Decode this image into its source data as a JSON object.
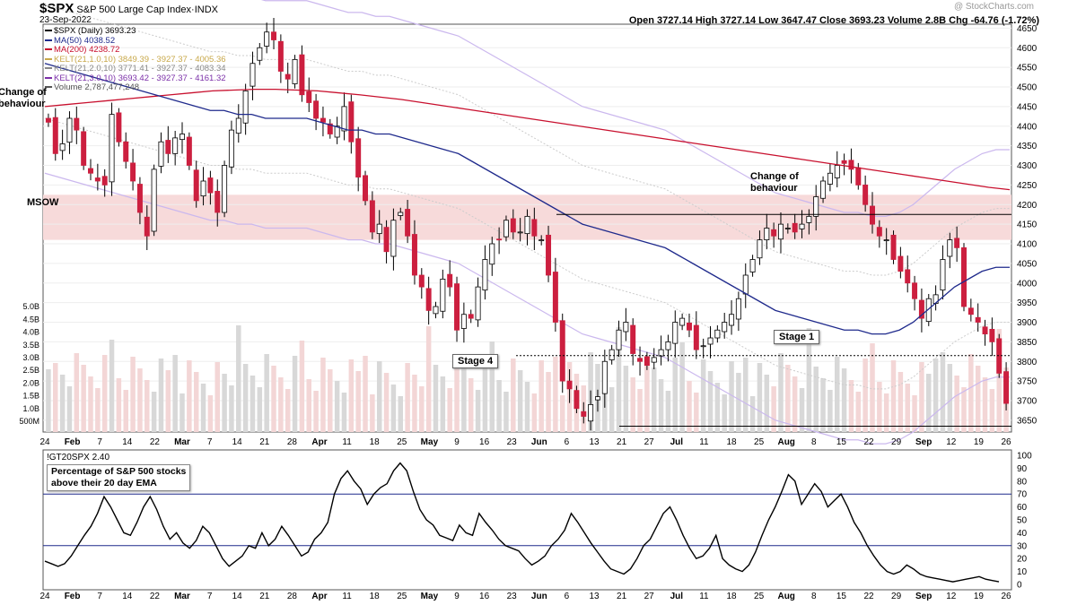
{
  "header": {
    "symbol": "$SPX",
    "name": "S&P 500 Large Cap Index",
    "exchange": "INDX",
    "date": "23-Sep-2022",
    "watermark": "@ StockCharts.com",
    "ohlc": "Open 3727.14  High 3727.14  Low 3647.47  Close 3693.23  Volume 2.8B  Chg -64.76 (-1.72%)"
  },
  "legend": [
    {
      "text": "$SPX (Daily) 3693.23",
      "color": "#000000"
    },
    {
      "text": "MA(50) 4038.52",
      "color": "#1f2a8c"
    },
    {
      "text": "MA(200) 4238.72",
      "color": "#c8102e"
    },
    {
      "text": "KELT(21,1.0,10) 3849.39 - 3927.37 - 4005.36",
      "color": "#c8a84a"
    },
    {
      "text": "KELT(21,2.0,10) 3771.41 - 3927.37 - 4083.34",
      "color": "#888888"
    },
    {
      "text": "KELT(21,3.0,10) 3693.42 - 3927.37 - 4161.32",
      "color": "#7b2fa8"
    },
    {
      "text": "Volume 2,787,477,248",
      "color": "#555555"
    }
  ],
  "annotations": {
    "change_left": "Change of\nbehaviour",
    "msow": "MSOW",
    "change_right": "Change of\nbehaviour",
    "stage4": "Stage 4",
    "stage1": "Stage 1"
  },
  "lower_panel": {
    "title": "!GT20SPX 2.40",
    "caption": "Percentage of S&P 500 stocks\nabove their 20 day EMA"
  },
  "colors": {
    "up": "#ffffff",
    "down": "#cc1f3f",
    "ma50": "#1f2a8c",
    "ma200": "#c8102e",
    "band": "#f7dada",
    "volume": "#d8d8d8",
    "volume_down": "#f3d6d6"
  },
  "chart_data": [
    {
      "type": "candlestick",
      "title": "$SPX S&P 500 Large Cap Index",
      "ylim": [
        3620,
        4660
      ],
      "y_ticks": [
        3650,
        3700,
        3750,
        3800,
        3850,
        3900,
        3950,
        4000,
        4050,
        4100,
        4150,
        4200,
        4250,
        4300,
        4350,
        4400,
        4450,
        4500,
        4550,
        4600,
        4650
      ],
      "x_tick_labels": [
        "24",
        "Feb",
        "7",
        "14",
        "22",
        "Mar",
        "7",
        "14",
        "21",
        "28",
        "Apr",
        "11",
        "18",
        "25",
        "May",
        "9",
        "16",
        "23",
        "Jun",
        "6",
        "13",
        "21",
        "27",
        "Jul",
        "11",
        "18",
        "25",
        "Aug",
        "8",
        "15",
        "22",
        "29",
        "Sep",
        "12",
        "19",
        "26"
      ],
      "volume_ticks": [
        "500M",
        "1.0B",
        "1.5B",
        "2.0B",
        "2.5B",
        "3.0B",
        "3.5B",
        "4.0B",
        "4.5B",
        "5.0B"
      ],
      "close": [
        4410,
        4330,
        4355,
        4420,
        4390,
        4300,
        4280,
        4260,
        4250,
        4430,
        4360,
        4310,
        4260,
        4180,
        4120,
        4290,
        4360,
        4330,
        4370,
        4380,
        4300,
        4210,
        4260,
        4230,
        4180,
        4300,
        4390,
        4420,
        4490,
        4560,
        4600,
        4640,
        4620,
        4540,
        4520,
        4570,
        4480,
        4460,
        4420,
        4410,
        4380,
        4400,
        4450,
        4360,
        4270,
        4210,
        4130,
        4150,
        4080,
        4160,
        4180,
        4120,
        4020,
        3990,
        3930,
        3940,
        4010,
        3990,
        3880,
        3920,
        3910,
        3990,
        4060,
        4100,
        4110,
        4160,
        4130,
        4130,
        4170,
        4120,
        4110,
        4020,
        3900,
        3750,
        3730,
        3680,
        3660,
        3690,
        3710,
        3800,
        3830,
        3880,
        3900,
        3820,
        3800,
        3790,
        3810,
        3830,
        3850,
        3900,
        3910,
        3880,
        3830,
        3840,
        3860,
        3880,
        3900,
        3920,
        3960,
        4020,
        4060,
        4110,
        4140,
        4120,
        4150,
        4140,
        4130,
        4150,
        4170,
        4220,
        4260,
        4280,
        4300,
        4305,
        4290,
        4250,
        4200,
        4150,
        4120,
        4110,
        4060,
        4030,
        4000,
        3960,
        3910,
        3960,
        3970,
        4060,
        4110,
        4090,
        3940,
        3920,
        3900,
        3870,
        3850,
        3770,
        3693
      ],
      "ma50": [
        4560,
        4550,
        4540,
        4530,
        4520,
        4510,
        4500,
        4490,
        4480,
        4470,
        4460,
        4450,
        4440,
        4440,
        4430,
        4430,
        4420,
        4420,
        4420,
        4420,
        4410,
        4400,
        4390,
        4390,
        4380,
        4380,
        4370,
        4360,
        4350,
        4340,
        4330,
        4310,
        4290,
        4270,
        4250,
        4230,
        4210,
        4190,
        4170,
        4150,
        4140,
        4130,
        4120,
        4110,
        4100,
        4090,
        4070,
        4050,
        4030,
        4010,
        3990,
        3970,
        3950,
        3930,
        3920,
        3910,
        3900,
        3890,
        3880,
        3880,
        3870,
        3870,
        3880,
        3900,
        3930,
        3960,
        3990,
        4010,
        4030,
        4040,
        4040
      ],
      "ma200": [
        4450,
        4455,
        4460,
        4465,
        4470,
        4475,
        4480,
        4485,
        4490,
        4492,
        4494,
        4494,
        4492,
        4490,
        4485,
        4480,
        4474,
        4468,
        4460,
        4452,
        4444,
        4436,
        4428,
        4420,
        4412,
        4404,
        4396,
        4388,
        4380,
        4372,
        4364,
        4356,
        4348,
        4340,
        4332,
        4324,
        4316,
        4308,
        4300,
        4292,
        4284,
        4276,
        4268,
        4260,
        4252,
        4244,
        4238
      ],
      "gt20_ticks": [
        0,
        10,
        20,
        30,
        40,
        50,
        60,
        70,
        80,
        90,
        100
      ],
      "gt20_levels": [
        30,
        70
      ],
      "gt20": [
        18,
        16,
        14,
        16,
        22,
        30,
        38,
        45,
        55,
        68,
        60,
        50,
        40,
        38,
        48,
        60,
        68,
        58,
        45,
        35,
        40,
        32,
        28,
        34,
        45,
        40,
        30,
        20,
        14,
        18,
        22,
        30,
        28,
        40,
        30,
        35,
        45,
        38,
        30,
        22,
        25,
        35,
        40,
        48,
        70,
        82,
        88,
        80,
        74,
        62,
        70,
        75,
        78,
        88,
        94,
        88,
        72,
        58,
        50,
        46,
        38,
        36,
        34,
        46,
        40,
        38,
        55,
        48,
        42,
        35,
        30,
        28,
        26,
        20,
        15,
        18,
        22,
        30,
        35,
        42,
        55,
        48,
        40,
        32,
        25,
        18,
        12,
        10,
        8,
        12,
        20,
        30,
        35,
        45,
        55,
        60,
        50,
        38,
        28,
        20,
        22,
        28,
        38,
        20,
        15,
        12,
        10,
        15,
        25,
        38,
        50,
        60,
        72,
        85,
        80,
        62,
        70,
        78,
        72,
        60,
        65,
        70,
        60,
        48,
        40,
        30,
        22,
        15,
        10,
        8,
        10,
        15,
        12,
        8,
        6,
        5,
        4,
        3,
        2,
        3,
        4,
        5,
        6,
        4,
        3,
        2
      ],
      "gt20_x_tick_labels": [
        "24",
        "Feb",
        "7",
        "14",
        "22",
        "Mar",
        "7",
        "14",
        "21",
        "28",
        "Apr",
        "11",
        "18",
        "25",
        "May",
        "9",
        "16",
        "23",
        "Jun",
        "6",
        "13",
        "21",
        "27",
        "Jul",
        "11",
        "18",
        "25",
        "Aug",
        "8",
        "15",
        "22",
        "29",
        "Sep",
        "12",
        "19",
        "26"
      ]
    }
  ]
}
